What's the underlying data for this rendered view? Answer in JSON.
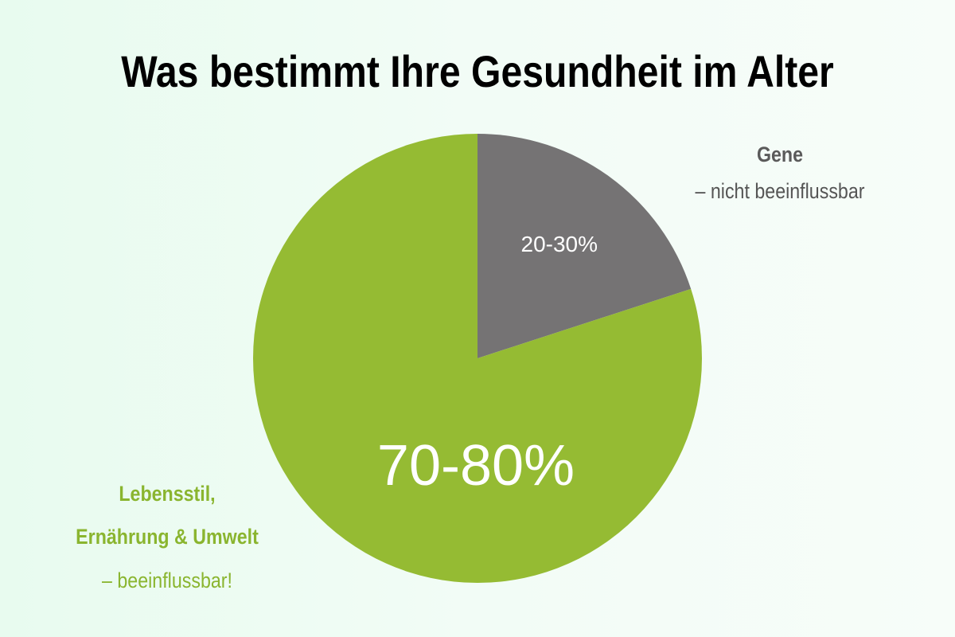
{
  "title": "Was bestimmt Ihre Gesundheit im Alter",
  "colors": {
    "gene": "#757374",
    "lifestyle": "#95bb33",
    "slice_text": "#ffffff",
    "gene_legend_title": "#5a5a5a",
    "gene_legend_sub": "#555555",
    "lifestyle_legend": "#8ab52f"
  },
  "legend": {
    "gene": {
      "title": "Gene",
      "subtitle": "– nicht beeinflussbar"
    },
    "lifestyle": {
      "title_line1": "Lebensstil,",
      "title_line2": "Ernährung & Umwelt",
      "subtitle": "– beeinflussbar!"
    }
  },
  "chart_data": {
    "type": "pie",
    "title": "Was bestimmt Ihre Gesundheit im Alter",
    "slices": [
      {
        "label": "Gene",
        "value_label": "20-30%",
        "value": 20,
        "color": "#757374"
      },
      {
        "label": "Lebensstil, Ernährung & Umwelt",
        "value_label": "70-80%",
        "value": 80,
        "color": "#95bb33"
      }
    ],
    "start": "top",
    "direction": "clockwise"
  }
}
